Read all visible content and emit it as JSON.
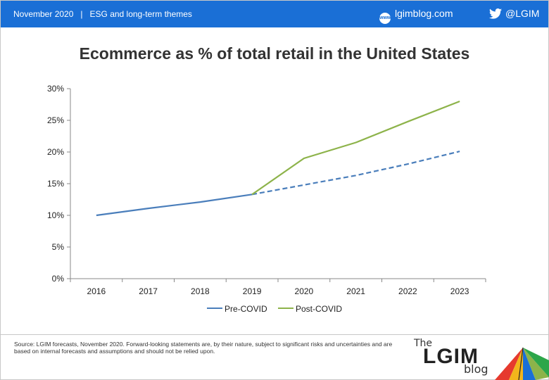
{
  "header": {
    "date": "November 2020",
    "separator": "|",
    "section": "ESG and long-term themes",
    "site": "lgimblog.com",
    "site_icon": "www",
    "twitter": "@LGIM"
  },
  "title": "Ecommerce as % of total retail in the United States",
  "source": "Source: LGIM forecasts, November 2020. Forward-looking statements are, by their nature, subject to significant risks and uncertainties and are based on internal forecasts and assumptions and should not be relied upon.",
  "logo": {
    "the": "The",
    "name": "LGIM",
    "blog": "blog"
  },
  "colors": {
    "header_bg": "#1a6fd6",
    "pre_covid": "#4a7ebb",
    "post_covid": "#8db34a"
  },
  "chart_data": {
    "type": "line",
    "title": "Ecommerce as % of total retail in the United States",
    "categories": [
      "2016",
      "2017",
      "2018",
      "2019",
      "2020",
      "2021",
      "2022",
      "2023"
    ],
    "yticks": [
      "0%",
      "5%",
      "10%",
      "15%",
      "20%",
      "25%",
      "30%"
    ],
    "ylim": [
      0,
      30
    ],
    "legend_position": "bottom",
    "series": [
      {
        "name": "Pre-COVID",
        "color": "#4a7ebb",
        "values": [
          10.0,
          11.1,
          12.1,
          13.3,
          14.8,
          16.3,
          18.1,
          20.1
        ],
        "dashed_from_index": 3
      },
      {
        "name": "Post-COVID",
        "color": "#8db34a",
        "values": [
          null,
          null,
          null,
          13.3,
          19.0,
          21.5,
          24.8,
          28.0
        ]
      }
    ]
  }
}
